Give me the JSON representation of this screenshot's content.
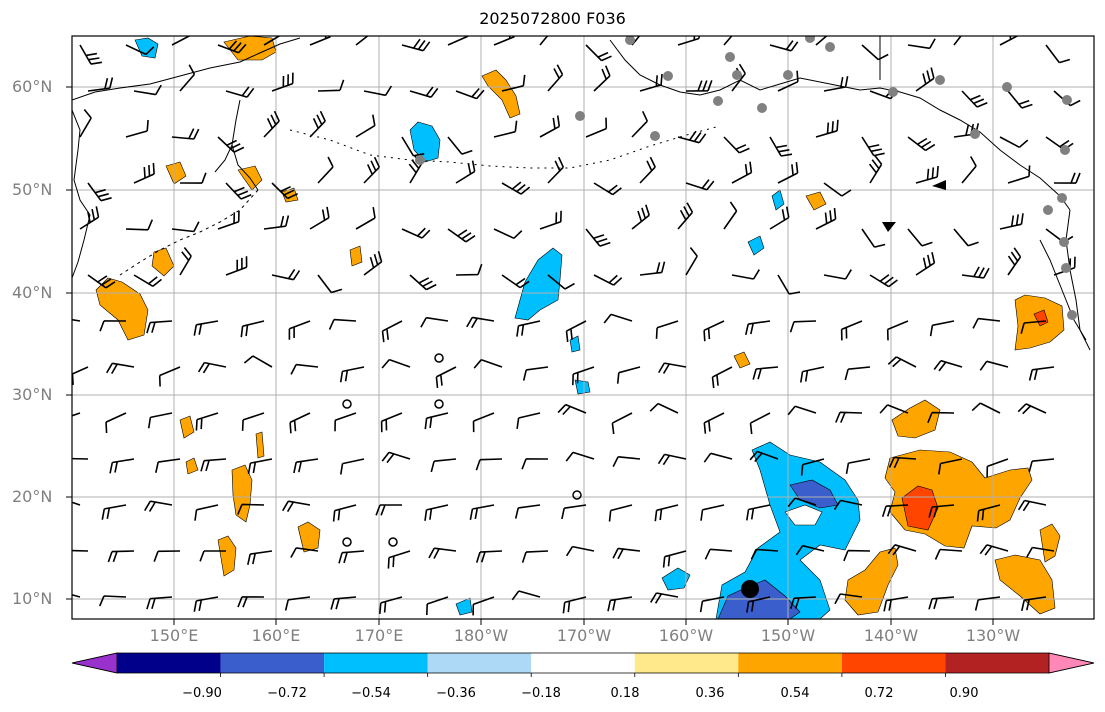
{
  "title": "2025072800 F036",
  "lat_labels": [
    "60°N",
    "50°N",
    "40°N",
    "30°N",
    "20°N",
    "10°N"
  ],
  "lon_labels": [
    "150°E",
    "160°E",
    "170°E",
    "180°W",
    "170°W",
    "160°W",
    "150°W",
    "140°W",
    "130°W"
  ],
  "colorbar": {
    "ticks": [
      "−0.90",
      "−0.72",
      "−0.54",
      "−0.36",
      "−0.18",
      "0.18",
      "0.36",
      "0.54",
      "0.72",
      "0.90"
    ],
    "colors": [
      "#9932cc",
      "#00008b",
      "#3a5fcd",
      "#00bfff",
      "#add8f6",
      "#ffffff",
      "#ffe98a",
      "#ffa500",
      "#ff4500",
      "#b22222",
      "#ff88b8"
    ]
  },
  "palette": {
    "neg_light": "#add8f6",
    "neg_mid": "#00bfff",
    "neg_dark": "#3a5fcd",
    "pos_light": "#ffe98a",
    "pos_mid": "#ffa500",
    "pos_dark": "#ff4500",
    "station": "#808080",
    "grid": "#b0b0b0"
  }
}
